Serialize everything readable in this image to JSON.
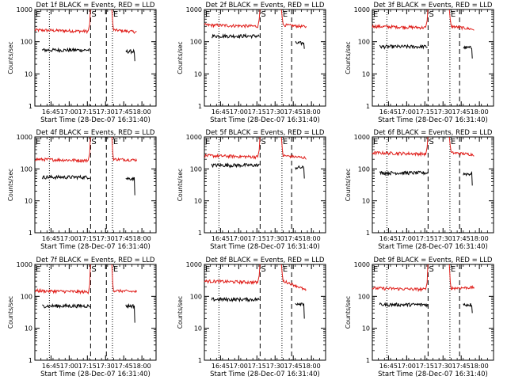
{
  "colors": {
    "events": "#000000",
    "lld": "#e0201c",
    "axis": "#000000",
    "background": "#ffffff"
  },
  "chart_data": {
    "type": "line",
    "layout": "3x3 grid of log-scale time-series panels",
    "shared": {
      "ylabel": "Counts/sec",
      "xlabel": "Start Time (28-Dec-07 16:31:40)",
      "yscale": "log",
      "ylim": [
        1,
        1000
      ],
      "ytick_labels": [
        "1",
        "10",
        "100",
        "1000"
      ],
      "xlim_minutes_after_16_31_40": [
        0,
        100
      ],
      "xtick_labels": [
        "16:45",
        "17:00",
        "17:15",
        "17:30",
        "17:45",
        "18:00"
      ],
      "xtick_minutes": [
        13.33,
        28.33,
        43.33,
        58.33,
        73.33,
        88.33
      ],
      "series": [
        {
          "name": "Events",
          "color": "black"
        },
        {
          "name": "LLD",
          "color": "red"
        }
      ],
      "markers": [
        {
          "label": "E",
          "minute": 0
        },
        {
          "label": "S",
          "minute": 46
        },
        {
          "label": "E",
          "minute": 64
        }
      ],
      "dotted_vlines_minutes": [
        12,
        64
      ],
      "dashed_vlines_minutes": [
        46,
        59
      ]
    },
    "panels": [
      {
        "title": "Det 1f BLACK = Events, RED = LLD",
        "lld_level": 230,
        "lld_end": 200,
        "events_level": 55,
        "events_end": 50,
        "late_dip": 25,
        "dashed_vlines_minutes": [
          46,
          59
        ]
      },
      {
        "title": "Det 2f BLACK = Events, RED = LLD",
        "lld_level": 330,
        "lld_end": 290,
        "events_level": 150,
        "events_end": 90,
        "late_dip": 60,
        "dashed_vlines_minutes": [
          46,
          72
        ]
      },
      {
        "title": "Det 3f BLACK = Events, RED = LLD",
        "lld_level": 300,
        "lld_end": 240,
        "events_level": 70,
        "events_end": 65,
        "late_dip": 30,
        "dashed_vlines_minutes": [
          46,
          72
        ]
      },
      {
        "title": "Det 4f BLACK = Events, RED = LLD",
        "lld_level": 200,
        "lld_end": 190,
        "events_level": 55,
        "events_end": 50,
        "late_dip": 15,
        "dashed_vlines_minutes": [
          46,
          59
        ]
      },
      {
        "title": "Det 5f BLACK = Events, RED = LLD",
        "lld_level": 260,
        "lld_end": 220,
        "events_level": 130,
        "events_end": 110,
        "late_dip": 50,
        "dashed_vlines_minutes": [
          46,
          72
        ]
      },
      {
        "title": "Det 6f BLACK = Events, RED = LLD",
        "lld_level": 320,
        "lld_end": 280,
        "events_level": 75,
        "events_end": 70,
        "late_dip": 30,
        "dashed_vlines_minutes": [
          46,
          72
        ]
      },
      {
        "title": "Det 7f BLACK = Events, RED = LLD",
        "lld_level": 150,
        "lld_end": 140,
        "events_level": 50,
        "events_end": 50,
        "late_dip": 15,
        "dashed_vlines_minutes": [
          46,
          59
        ]
      },
      {
        "title": "Det 8f BLACK = Events, RED = LLD",
        "lld_level": 300,
        "lld_end": 150,
        "events_level": 80,
        "events_end": 60,
        "late_dip": 20,
        "dashed_vlines_minutes": [
          46,
          72
        ]
      },
      {
        "title": "Det 9f BLACK = Events, RED = LLD",
        "lld_level": 180,
        "lld_end": 190,
        "events_level": 55,
        "events_end": 55,
        "late_dip": 30,
        "dashed_vlines_minutes": [
          46,
          72
        ]
      }
    ]
  }
}
